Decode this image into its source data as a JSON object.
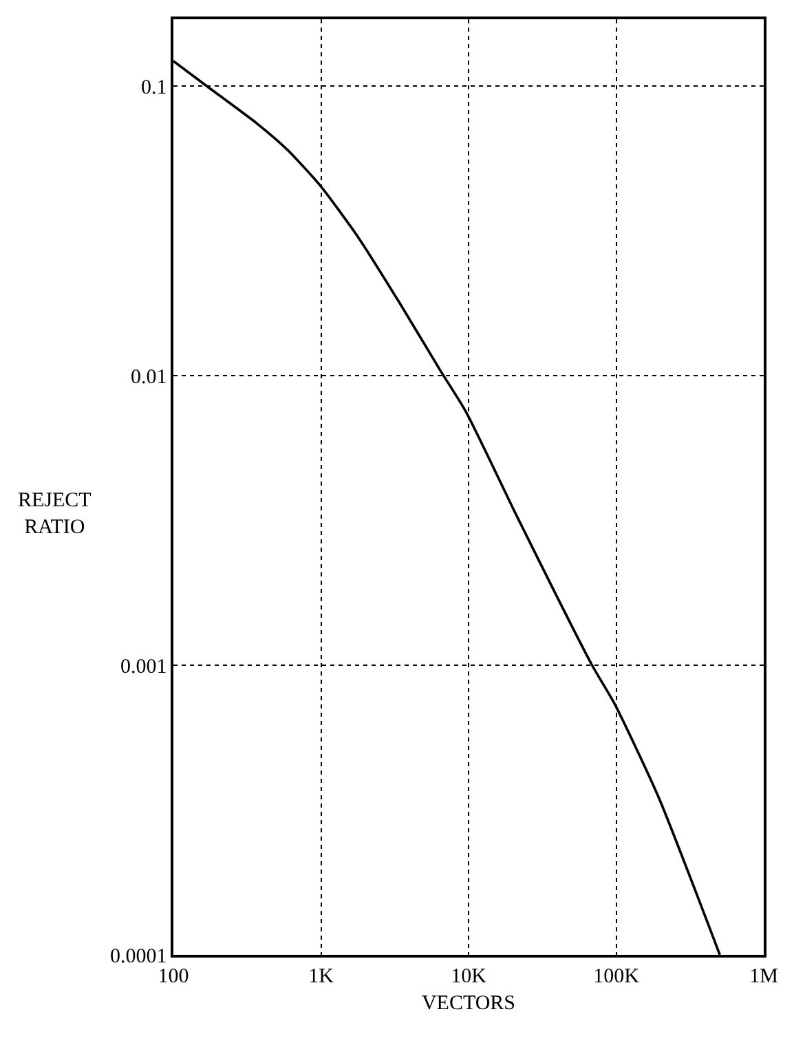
{
  "chart_data": {
    "type": "line",
    "xlabel": "VECTORS",
    "ylabel": "REJECT\nRATIO",
    "log": "xy",
    "grid": true,
    "line_style": "solid",
    "marker": "none",
    "xlim": [
      100,
      1000000
    ],
    "ylim": [
      0.0001,
      0.17
    ],
    "xticks": [
      {
        "value": 100,
        "label": "100"
      },
      {
        "value": 1000,
        "label": "1K"
      },
      {
        "value": 10000,
        "label": "10K"
      },
      {
        "value": 100000,
        "label": "100K"
      },
      {
        "value": 1000000,
        "label": "1M"
      }
    ],
    "yticks": [
      0.0001,
      0.001,
      0.01,
      0.1
    ],
    "series": [
      {
        "color": "#000000",
        "x": [
          100,
          168,
          371,
          597,
          1000,
          1790,
          3370,
          6450,
          9600,
          21700,
          68700,
          98400,
          194000,
          504000
        ],
        "values": [
          0.122,
          0.1,
          0.074,
          0.06,
          0.045,
          0.03,
          0.018,
          0.0104,
          0.0075,
          0.0032,
          0.001,
          0.00073,
          0.00035,
          0.0001
        ]
      }
    ]
  }
}
